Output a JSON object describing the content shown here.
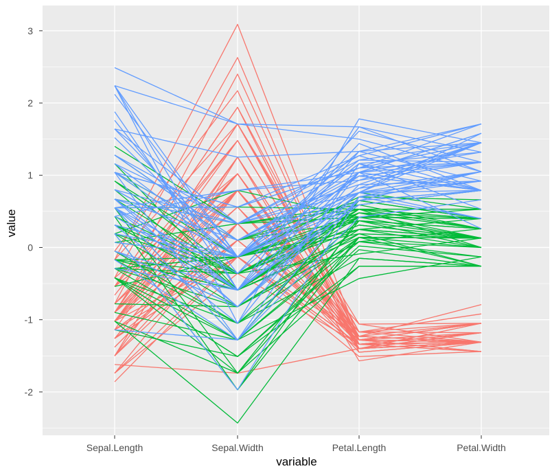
{
  "chart_data": {
    "type": "line",
    "subtype": "parallel-coordinates",
    "xlabel": "variable",
    "ylabel": "value",
    "categories": [
      "Sepal.Length",
      "Sepal.Width",
      "Petal.Length",
      "Petal.Width"
    ],
    "yticks": [
      -2,
      -1,
      0,
      1,
      2,
      3
    ],
    "ytick_labels": [
      "-2",
      "-1",
      "0",
      "1",
      "2",
      "3"
    ],
    "ylim": [
      -2.6,
      3.35
    ],
    "grid": true,
    "legend": "none",
    "colors": {
      "panel": "#ebebeb",
      "grid": "#ffffff"
    },
    "series": [
      {
        "color": "#f8766d",
        "lines": [
          [
            -0.9,
            1.02,
            -1.34,
            -1.31
          ],
          [
            -1.14,
            -0.13,
            -1.34,
            -1.31
          ],
          [
            -1.38,
            0.33,
            -1.4,
            -1.31
          ],
          [
            -1.5,
            0.1,
            -1.28,
            -1.31
          ],
          [
            -1.02,
            1.25,
            -1.34,
            -1.31
          ],
          [
            -0.54,
            1.94,
            -1.17,
            -1.05
          ],
          [
            -1.5,
            0.79,
            -1.34,
            -1.18
          ],
          [
            -1.02,
            0.79,
            -1.28,
            -1.31
          ],
          [
            -1.74,
            -0.36,
            -1.34,
            -1.31
          ],
          [
            -1.14,
            0.1,
            -1.28,
            -1.44
          ],
          [
            -0.54,
            1.48,
            -1.28,
            -1.31
          ],
          [
            -1.26,
            0.79,
            -1.23,
            -1.31
          ],
          [
            -1.26,
            -0.13,
            -1.34,
            -1.44
          ],
          [
            -1.86,
            -0.13,
            -1.51,
            -1.44
          ],
          [
            -0.05,
            2.17,
            -1.45,
            -1.31
          ],
          [
            -0.17,
            3.09,
            -1.28,
            -1.05
          ],
          [
            -0.54,
            1.94,
            -1.4,
            -1.05
          ],
          [
            -0.9,
            1.02,
            -1.34,
            -1.18
          ],
          [
            -0.17,
            1.71,
            -1.17,
            -1.18
          ],
          [
            -0.9,
            1.71,
            -1.28,
            -1.18
          ],
          [
            -0.54,
            0.79,
            -1.17,
            -1.31
          ],
          [
            -0.9,
            1.48,
            -1.28,
            -1.05
          ],
          [
            -1.5,
            1.25,
            -1.57,
            -1.31
          ],
          [
            -0.9,
            0.56,
            -1.17,
            -0.92
          ],
          [
            -1.26,
            0.79,
            -1.06,
            -1.31
          ],
          [
            -1.02,
            -0.13,
            -1.23,
            -1.31
          ],
          [
            -1.02,
            0.79,
            -1.23,
            -1.05
          ],
          [
            -0.78,
            1.02,
            -1.28,
            -1.31
          ],
          [
            -0.78,
            0.79,
            -1.34,
            -1.31
          ],
          [
            -1.38,
            0.33,
            -1.23,
            -1.31
          ],
          [
            -1.26,
            0.1,
            -1.23,
            -1.31
          ],
          [
            -0.54,
            0.79,
            -1.28,
            -1.05
          ],
          [
            -0.78,
            2.4,
            -1.28,
            -1.44
          ],
          [
            -0.42,
            2.63,
            -1.34,
            -1.31
          ],
          [
            -1.14,
            0.1,
            -1.28,
            -1.31
          ],
          [
            -1.02,
            0.33,
            -1.45,
            -1.31
          ],
          [
            -0.42,
            1.02,
            -1.4,
            -1.31
          ],
          [
            -1.14,
            1.25,
            -1.34,
            -1.44
          ],
          [
            -1.74,
            -0.13,
            -1.4,
            -1.31
          ],
          [
            -0.9,
            0.79,
            -1.28,
            -1.31
          ],
          [
            -1.02,
            1.02,
            -1.4,
            -1.18
          ],
          [
            -1.62,
            -1.74,
            -1.4,
            -1.18
          ],
          [
            -1.74,
            0.33,
            -1.4,
            -1.31
          ],
          [
            -1.02,
            1.02,
            -1.23,
            -0.79
          ],
          [
            -0.9,
            1.71,
            -1.06,
            -1.05
          ],
          [
            -1.26,
            -0.13,
            -1.34,
            -1.18
          ],
          [
            -0.9,
            1.71,
            -1.23,
            -1.31
          ],
          [
            -1.5,
            0.33,
            -1.34,
            -1.31
          ],
          [
            -0.66,
            1.48,
            -1.28,
            -1.31
          ],
          [
            -1.02,
            0.56,
            -1.34,
            -1.31
          ]
        ]
      },
      {
        "color": "#00ba38",
        "lines": [
          [
            1.4,
            0.33,
            0.53,
            0.26
          ],
          [
            0.67,
            0.33,
            0.42,
            0.4
          ],
          [
            1.28,
            0.1,
            0.65,
            0.4
          ],
          [
            -0.42,
            -1.74,
            0.14,
            0.13
          ],
          [
            0.8,
            -0.59,
            0.48,
            0.4
          ],
          [
            -0.17,
            -0.59,
            0.42,
            0.13
          ],
          [
            0.55,
            0.56,
            0.53,
            0.53
          ],
          [
            -1.14,
            -1.51,
            -0.26,
            -0.26
          ],
          [
            0.92,
            -0.36,
            0.48,
            0.13
          ],
          [
            -0.78,
            -0.82,
            0.08,
            0.26
          ],
          [
            -1.02,
            -2.43,
            -0.15,
            -0.26
          ],
          [
            0.07,
            -0.13,
            0.25,
            0.4
          ],
          [
            0.19,
            -1.97,
            0.14,
            -0.26
          ],
          [
            0.31,
            -0.36,
            0.53,
            0.26
          ],
          [
            -0.29,
            -0.36,
            -0.09,
            0.13
          ],
          [
            1.04,
            0.1,
            0.37,
            0.26
          ],
          [
            -0.29,
            -0.13,
            0.42,
            0.4
          ],
          [
            -0.05,
            -0.82,
            0.19,
            -0.26
          ],
          [
            0.43,
            -1.97,
            0.42,
            0.4
          ],
          [
            -0.29,
            -1.28,
            0.08,
            -0.13
          ],
          [
            0.07,
            0.33,
            0.59,
            0.79
          ],
          [
            0.31,
            -0.59,
            0.14,
            0.13
          ],
          [
            0.55,
            -1.28,
            0.65,
            0.4
          ],
          [
            0.31,
            -0.59,
            0.53,
            0.0
          ],
          [
            0.67,
            -0.36,
            0.31,
            0.13
          ],
          [
            0.92,
            -0.13,
            0.37,
            0.26
          ],
          [
            1.16,
            -0.59,
            0.59,
            0.26
          ],
          [
            1.04,
            -0.13,
            0.7,
            0.66
          ],
          [
            0.19,
            -0.36,
            0.42,
            0.4
          ],
          [
            -0.17,
            -1.05,
            -0.15,
            -0.26
          ],
          [
            -0.42,
            -1.51,
            0.02,
            -0.13
          ],
          [
            -0.42,
            -1.51,
            -0.03,
            -0.26
          ],
          [
            -0.05,
            -0.82,
            0.08,
            0.0
          ],
          [
            0.19,
            -0.82,
            0.76,
            0.53
          ],
          [
            -0.54,
            -0.13,
            0.42,
            0.4
          ],
          [
            0.19,
            0.79,
            0.42,
            0.53
          ],
          [
            1.04,
            0.1,
            0.53,
            0.4
          ],
          [
            0.55,
            -1.74,
            0.37,
            0.13
          ],
          [
            -0.29,
            -0.13,
            0.19,
            0.13
          ],
          [
            -0.42,
            -1.28,
            0.14,
            0.13
          ],
          [
            -0.42,
            -1.05,
            0.37,
            0.0
          ],
          [
            0.31,
            -0.13,
            0.48,
            0.26
          ],
          [
            -0.05,
            -1.05,
            0.14,
            0.0
          ],
          [
            -1.02,
            -1.74,
            -0.26,
            -0.26
          ],
          [
            -0.29,
            -0.82,
            0.25,
            0.13
          ],
          [
            -0.17,
            -0.13,
            0.25,
            0.0
          ],
          [
            -0.17,
            -0.36,
            0.25,
            0.13
          ],
          [
            0.43,
            -0.36,
            0.31,
            0.13
          ],
          [
            -0.9,
            -1.28,
            -0.43,
            -0.13
          ],
          [
            -0.17,
            -0.59,
            0.19,
            0.13
          ]
        ]
      },
      {
        "color": "#619cff",
        "lines": [
          [
            0.55,
            0.56,
            1.27,
            1.71
          ],
          [
            -0.05,
            -0.82,
            0.76,
            0.92
          ],
          [
            1.52,
            -0.13,
            1.21,
            1.18
          ],
          [
            0.55,
            -0.36,
            1.04,
            0.79
          ],
          [
            0.8,
            -0.13,
            1.16,
            1.32
          ],
          [
            2.12,
            -0.13,
            1.61,
            1.18
          ],
          [
            -1.14,
            -1.28,
            0.42,
            0.66
          ],
          [
            1.76,
            -0.36,
            1.44,
            0.79
          ],
          [
            1.04,
            -1.28,
            1.16,
            0.79
          ],
          [
            1.64,
            1.25,
            1.33,
            1.71
          ],
          [
            0.8,
            0.33,
            0.76,
            1.05
          ],
          [
            0.67,
            -0.82,
            0.87,
            0.92
          ],
          [
            1.16,
            -0.13,
            0.99,
            1.18
          ],
          [
            -0.17,
            -1.28,
            0.7,
            1.05
          ],
          [
            -0.05,
            -0.59,
            0.76,
            1.58
          ],
          [
            0.67,
            0.33,
            0.87,
            1.45
          ],
          [
            0.8,
            -0.13,
            0.99,
            0.79
          ],
          [
            2.24,
            1.71,
            1.67,
            1.32
          ],
          [
            2.24,
            -1.05,
            1.78,
            1.45
          ],
          [
            0.19,
            -1.97,
            0.7,
            0.4
          ],
          [
            1.28,
            0.33,
            1.1,
            1.45
          ],
          [
            -0.29,
            -0.59,
            0.65,
            1.05
          ],
          [
            2.24,
            -0.59,
            1.67,
            1.05
          ],
          [
            0.55,
            -0.82,
            0.65,
            0.79
          ],
          [
            1.04,
            0.56,
            1.1,
            1.18
          ],
          [
            1.64,
            0.33,
            1.27,
            0.79
          ],
          [
            0.43,
            -0.59,
            0.59,
            0.79
          ],
          [
            0.31,
            -0.13,
            0.65,
            0.79
          ],
          [
            0.67,
            -0.59,
            1.04,
            1.18
          ],
          [
            1.64,
            -0.13,
            1.16,
            0.53
          ],
          [
            1.88,
            -0.59,
            1.33,
            0.92
          ],
          [
            2.49,
            1.71,
            1.5,
            1.05
          ],
          [
            0.67,
            -0.59,
            1.04,
            1.32
          ],
          [
            0.55,
            -0.59,
            0.76,
            0.4
          ],
          [
            0.31,
            -1.05,
            1.04,
            0.26
          ],
          [
            2.24,
            -0.13,
            1.33,
            1.45
          ],
          [
            0.55,
            0.79,
            1.04,
            1.58
          ],
          [
            0.67,
            0.1,
            0.99,
            0.79
          ],
          [
            0.19,
            -0.13,
            0.59,
            0.79
          ],
          [
            1.28,
            0.1,
            0.93,
            1.18
          ],
          [
            1.04,
            0.1,
            1.04,
            1.58
          ],
          [
            1.28,
            0.1,
            0.76,
            1.45
          ],
          [
            -0.05,
            -0.82,
            0.76,
            0.92
          ],
          [
            1.16,
            0.33,
            1.21,
            1.45
          ],
          [
            1.04,
            0.56,
            1.1,
            1.71
          ],
          [
            1.04,
            -0.13,
            0.82,
            1.45
          ],
          [
            0.55,
            -1.28,
            0.7,
            0.92
          ],
          [
            0.8,
            -0.13,
            0.82,
            1.05
          ],
          [
            0.43,
            0.79,
            0.93,
            1.45
          ],
          [
            0.07,
            -0.13,
            0.76,
            0.79
          ]
        ]
      }
    ]
  }
}
